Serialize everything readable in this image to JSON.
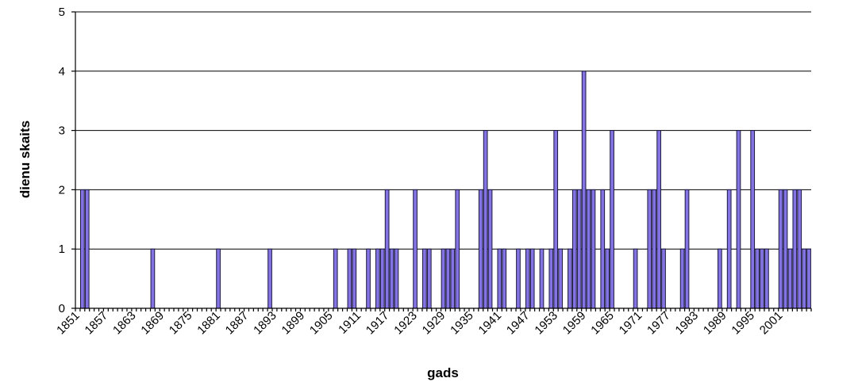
{
  "chart_data": {
    "type": "bar",
    "title": "",
    "xlabel": "gads",
    "ylabel": "dienu skaits",
    "ylim": [
      0,
      5
    ],
    "yticks": [
      0,
      1,
      2,
      3,
      4,
      5
    ],
    "grid": true,
    "legend": "none",
    "x_start": 1851,
    "x_end": 2007,
    "x_tick_labels": [
      "1851",
      "1857",
      "1863",
      "1869",
      "1875",
      "1881",
      "1887",
      "1893",
      "1899",
      "1905",
      "1911",
      "1917",
      "1923",
      "1929",
      "1935",
      "1941",
      "1947",
      "1953",
      "1959",
      "1965",
      "1971",
      "1977",
      "1983",
      "1989",
      "1995",
      "2001"
    ],
    "bar_color": "#8473e3",
    "points": [
      {
        "year": 1852,
        "value": 2
      },
      {
        "year": 1853,
        "value": 2
      },
      {
        "year": 1867,
        "value": 1
      },
      {
        "year": 1881,
        "value": 1
      },
      {
        "year": 1892,
        "value": 1
      },
      {
        "year": 1906,
        "value": 1
      },
      {
        "year": 1909,
        "value": 1
      },
      {
        "year": 1910,
        "value": 1
      },
      {
        "year": 1913,
        "value": 1
      },
      {
        "year": 1915,
        "value": 1
      },
      {
        "year": 1916,
        "value": 1
      },
      {
        "year": 1917,
        "value": 2
      },
      {
        "year": 1918,
        "value": 1
      },
      {
        "year": 1919,
        "value": 1
      },
      {
        "year": 1923,
        "value": 2
      },
      {
        "year": 1925,
        "value": 1
      },
      {
        "year": 1926,
        "value": 1
      },
      {
        "year": 1929,
        "value": 1
      },
      {
        "year": 1930,
        "value": 1
      },
      {
        "year": 1931,
        "value": 1
      },
      {
        "year": 1932,
        "value": 2
      },
      {
        "year": 1937,
        "value": 2
      },
      {
        "year": 1938,
        "value": 3
      },
      {
        "year": 1939,
        "value": 2
      },
      {
        "year": 1941,
        "value": 1
      },
      {
        "year": 1942,
        "value": 1
      },
      {
        "year": 1945,
        "value": 1
      },
      {
        "year": 1947,
        "value": 1
      },
      {
        "year": 1948,
        "value": 1
      },
      {
        "year": 1950,
        "value": 1
      },
      {
        "year": 1952,
        "value": 1
      },
      {
        "year": 1953,
        "value": 3
      },
      {
        "year": 1954,
        "value": 1
      },
      {
        "year": 1956,
        "value": 1
      },
      {
        "year": 1957,
        "value": 2
      },
      {
        "year": 1958,
        "value": 2
      },
      {
        "year": 1959,
        "value": 4
      },
      {
        "year": 1960,
        "value": 2
      },
      {
        "year": 1961,
        "value": 2
      },
      {
        "year": 1963,
        "value": 2
      },
      {
        "year": 1964,
        "value": 1
      },
      {
        "year": 1965,
        "value": 3
      },
      {
        "year": 1970,
        "value": 1
      },
      {
        "year": 1973,
        "value": 2
      },
      {
        "year": 1974,
        "value": 2
      },
      {
        "year": 1975,
        "value": 3
      },
      {
        "year": 1976,
        "value": 1
      },
      {
        "year": 1980,
        "value": 1
      },
      {
        "year": 1981,
        "value": 2
      },
      {
        "year": 1988,
        "value": 1
      },
      {
        "year": 1990,
        "value": 2
      },
      {
        "year": 1992,
        "value": 3
      },
      {
        "year": 1995,
        "value": 3
      },
      {
        "year": 1996,
        "value": 1
      },
      {
        "year": 1997,
        "value": 1
      },
      {
        "year": 1998,
        "value": 1
      },
      {
        "year": 2001,
        "value": 2
      },
      {
        "year": 2002,
        "value": 2
      },
      {
        "year": 2003,
        "value": 1
      },
      {
        "year": 2004,
        "value": 2
      },
      {
        "year": 2005,
        "value": 2
      },
      {
        "year": 2006,
        "value": 1
      },
      {
        "year": 2007,
        "value": 1
      }
    ]
  }
}
